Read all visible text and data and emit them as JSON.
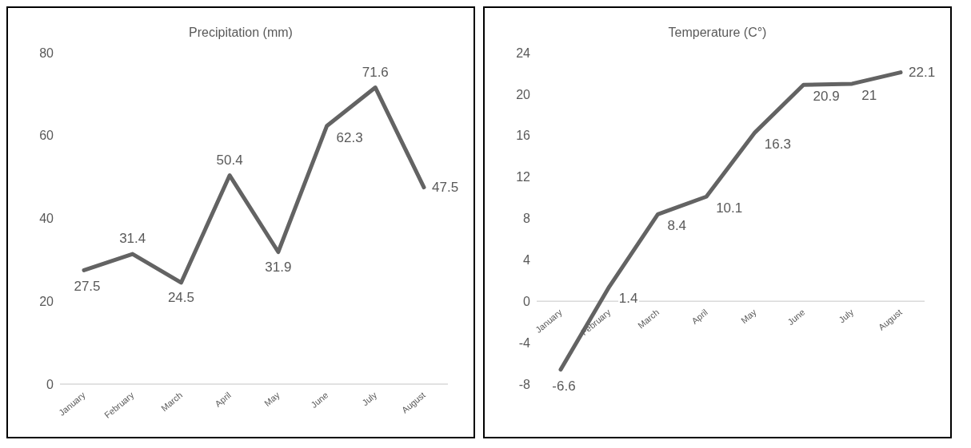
{
  "chart_data": [
    {
      "type": "line",
      "title": "Precipitation (mm)",
      "categories": [
        "January",
        "February",
        "March",
        "April",
        "May",
        "June",
        "July",
        "August"
      ],
      "series": [
        {
          "color": "#636363",
          "values": [
            27.5,
            31.4,
            24.5,
            50.4,
            31.9,
            62.3,
            71.6,
            47.5
          ]
        }
      ],
      "ylim": [
        0,
        80
      ],
      "yticks": [
        0,
        20,
        40,
        60,
        80
      ],
      "grid": false,
      "legend": false,
      "marker": "none",
      "line_style": "solid",
      "data_labels": true
    },
    {
      "type": "line",
      "title": "Temperature (C°)",
      "categories": [
        "January",
        "February",
        "March",
        "April",
        "May",
        "June",
        "July",
        "August"
      ],
      "series": [
        {
          "color": "#636363",
          "values": [
            -6.6,
            1.4,
            8.4,
            10.1,
            16.3,
            20.9,
            21,
            22.1
          ]
        }
      ],
      "ylim": [
        -8,
        24
      ],
      "yticks": [
        -8,
        -4,
        0,
        4,
        8,
        12,
        16,
        20,
        24
      ],
      "grid": false,
      "legend": false,
      "marker": "none",
      "line_style": "solid",
      "data_labels": true
    }
  ]
}
